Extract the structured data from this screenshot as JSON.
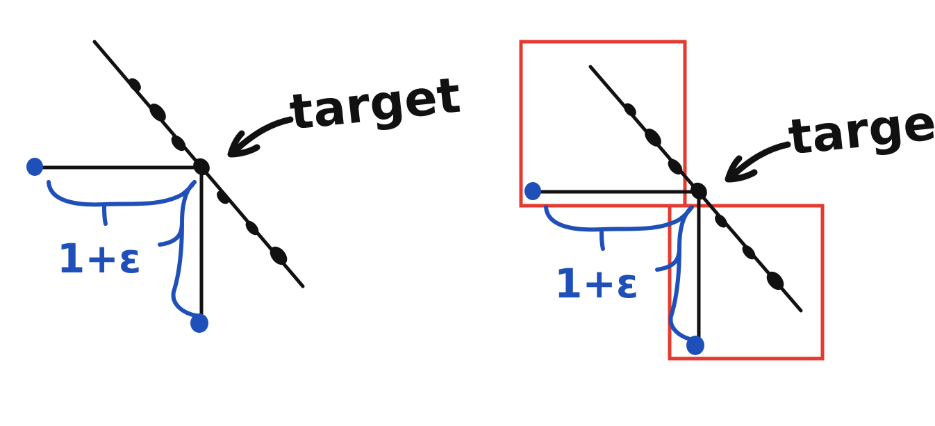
{
  "panels": [
    {
      "label_target": "target",
      "label_expansion": "1+ε",
      "show_boxes": false
    },
    {
      "label_target": "target",
      "label_expansion": "1+ε",
      "show_boxes": true
    }
  ],
  "colors": {
    "ink": "#111111",
    "blue": "#1f4fb8",
    "red": "#e53a2f"
  }
}
